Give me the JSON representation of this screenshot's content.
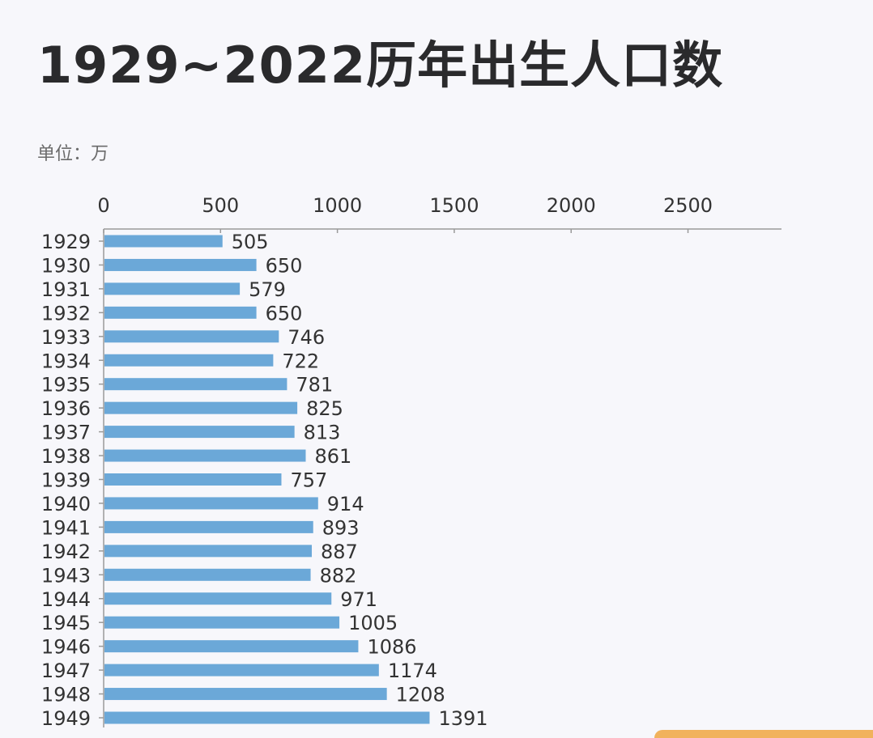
{
  "chart_data": {
    "type": "bar",
    "orientation": "horizontal",
    "title": "1929~2022历年出生人口数",
    "unit_label": "单位：万",
    "xlim": [
      0,
      2900
    ],
    "x_ticks": [
      0,
      500,
      1000,
      1500,
      2000,
      2500
    ],
    "grid": false,
    "bar_color": "#6ba8d8",
    "categories": [
      "1929",
      "1930",
      "1931",
      "1932",
      "1933",
      "1934",
      "1935",
      "1936",
      "1937",
      "1938",
      "1939",
      "1940",
      "1941",
      "1942",
      "1943",
      "1944",
      "1945",
      "1946",
      "1947",
      "1948",
      "1949"
    ],
    "values": [
      505,
      650,
      579,
      650,
      746,
      722,
      781,
      825,
      813,
      861,
      757,
      914,
      893,
      887,
      882,
      971,
      1005,
      1086,
      1174,
      1208,
      1391
    ]
  }
}
